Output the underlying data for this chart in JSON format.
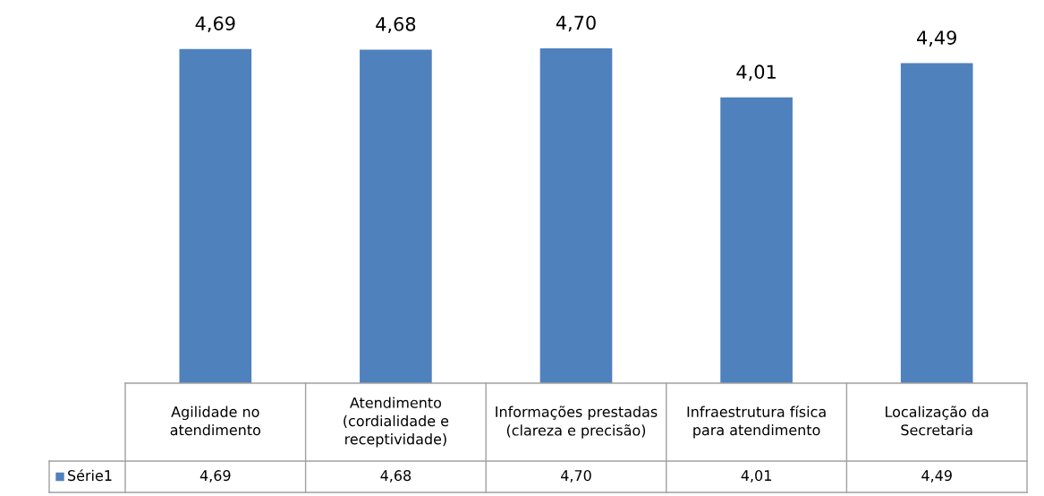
{
  "chart_data": {
    "type": "bar",
    "categories": [
      "Agilidade no\natendimento",
      "Atendimento\n(cordialidade e\nreceptividade)",
      "Informações prestadas\n(clareza e precisão)",
      "Infraestrutura física\npara atendimento",
      "Localização da\nSecretaria"
    ],
    "series": [
      {
        "name": "Série1",
        "color": "#4f81bd",
        "values": [
          4.69,
          4.68,
          4.7,
          4.01,
          4.49
        ],
        "value_labels": [
          "4,69",
          "4,68",
          "4,70",
          "4,01",
          "4,49"
        ]
      }
    ],
    "legend": "bottom"
  }
}
